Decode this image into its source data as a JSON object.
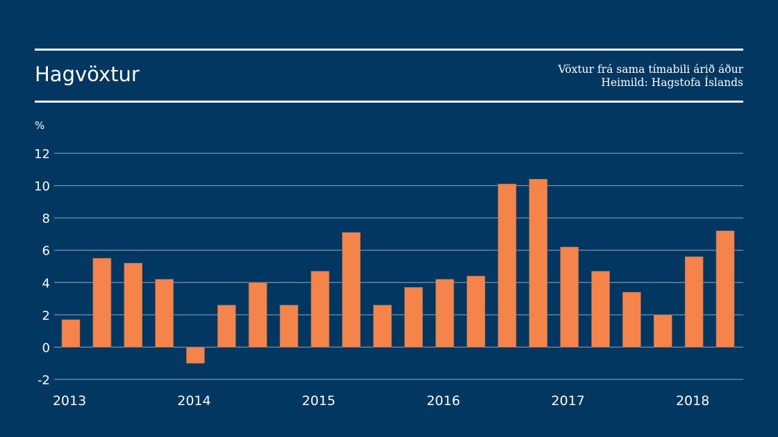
{
  "header": {
    "title": "Hagvöxtur",
    "subtitle_line1": "Vöxtur frá sama tímabili árið áður",
    "subtitle_line2": "Heimild: Hagstofa Íslands",
    "unit": "%"
  },
  "colors": {
    "background": "#023761",
    "bar": "#F4844A",
    "grid": "#8FA8C0",
    "text": "#FFFFFF"
  },
  "chart_data": {
    "type": "bar",
    "title": "Hagvöxtur",
    "subtitle": "Vöxtur frá sama tímabili árið áður",
    "source": "Heimild: Hagstofa Íslands",
    "ylabel": "%",
    "xlabel": "",
    "ylim": [
      -2,
      12
    ],
    "yticks": [
      -2,
      0,
      2,
      4,
      6,
      8,
      10,
      12
    ],
    "grid": true,
    "categories": [
      "2013 Q1",
      "2013 Q2",
      "2013 Q3",
      "2013 Q4",
      "2014 Q1",
      "2014 Q2",
      "2014 Q3",
      "2014 Q4",
      "2015 Q1",
      "2015 Q2",
      "2015 Q3",
      "2015 Q4",
      "2016 Q1",
      "2016 Q2",
      "2016 Q3",
      "2016 Q4",
      "2017 Q1",
      "2017 Q2",
      "2017 Q3",
      "2017 Q4",
      "2018 Q1",
      "2018 Q2"
    ],
    "values": [
      1.7,
      5.5,
      5.2,
      4.2,
      -1.0,
      2.6,
      4.0,
      2.6,
      4.7,
      7.1,
      2.6,
      3.7,
      4.2,
      4.4,
      10.1,
      10.4,
      6.2,
      4.7,
      3.4,
      2.0,
      5.6,
      7.2
    ],
    "xtick_labels": [
      "2013",
      "2014",
      "2015",
      "2016",
      "2017",
      "2018"
    ]
  }
}
